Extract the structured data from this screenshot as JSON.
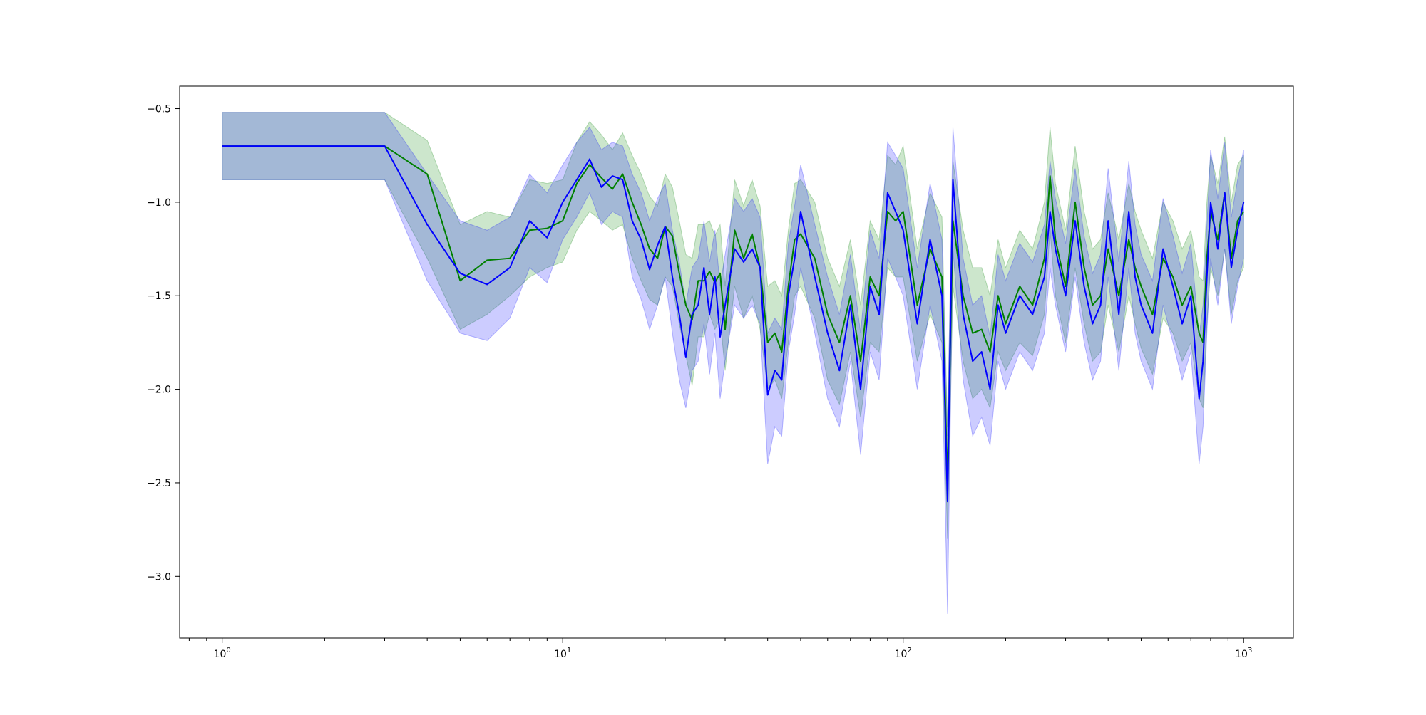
{
  "chart_data": {
    "type": "line",
    "title": "",
    "xlabel": "",
    "ylabel": "",
    "xscale": "log",
    "xlim": [
      0.75,
      1400
    ],
    "ylim": [
      -3.33,
      -0.38
    ],
    "grid": false,
    "x_ticks": [
      {
        "value": 1,
        "label": "10",
        "exp": "0"
      },
      {
        "value": 10,
        "label": "10",
        "exp": "1"
      },
      {
        "value": 100,
        "label": "10",
        "exp": "2"
      },
      {
        "value": 1000,
        "label": "10",
        "exp": "3"
      }
    ],
    "y_ticks": [
      {
        "value": -0.5,
        "label": "−0.5"
      },
      {
        "value": -1.0,
        "label": "−1.0"
      },
      {
        "value": -1.5,
        "label": "−1.5"
      },
      {
        "value": -2.0,
        "label": "−2.0"
      },
      {
        "value": -2.5,
        "label": "−2.5"
      },
      {
        "value": -3.0,
        "label": "−3.0"
      }
    ],
    "series": [
      {
        "color": "#008000",
        "band_color": "#008000",
        "x": [
          1,
          3,
          4,
          5,
          6,
          7,
          8,
          9,
          10,
          11,
          12,
          13,
          14,
          15,
          16,
          17,
          18,
          19,
          20,
          21,
          22,
          23,
          24,
          25,
          26,
          27,
          28,
          29,
          30,
          32,
          34,
          36,
          38,
          40,
          42,
          44,
          46,
          48,
          50,
          55,
          60,
          65,
          70,
          75,
          80,
          85,
          90,
          95,
          100,
          110,
          120,
          130,
          135,
          140,
          150,
          160,
          170,
          180,
          190,
          200,
          220,
          240,
          260,
          270,
          280,
          300,
          320,
          340,
          360,
          380,
          400,
          430,
          460,
          480,
          500,
          540,
          580,
          620,
          660,
          700,
          740,
          760,
          780,
          800,
          840,
          880,
          920,
          960,
          1000
        ],
        "y": [
          -0.7,
          -0.7,
          -0.85,
          -1.42,
          -1.31,
          -1.3,
          -1.15,
          -1.14,
          -1.1,
          -0.9,
          -0.8,
          -0.87,
          -0.93,
          -0.85,
          -1.0,
          -1.12,
          -1.25,
          -1.3,
          -1.13,
          -1.18,
          -1.38,
          -1.55,
          -1.63,
          -1.42,
          -1.42,
          -1.37,
          -1.43,
          -1.38,
          -1.68,
          -1.15,
          -1.3,
          -1.17,
          -1.35,
          -1.75,
          -1.7,
          -1.8,
          -1.45,
          -1.2,
          -1.17,
          -1.3,
          -1.6,
          -1.75,
          -1.5,
          -1.85,
          -1.4,
          -1.5,
          -1.05,
          -1.1,
          -1.05,
          -1.55,
          -1.25,
          -1.4,
          -2.5,
          -1.1,
          -1.5,
          -1.7,
          -1.68,
          -1.8,
          -1.5,
          -1.65,
          -1.45,
          -1.55,
          -1.3,
          -0.86,
          -1.2,
          -1.45,
          -1.0,
          -1.35,
          -1.55,
          -1.5,
          -1.25,
          -1.5,
          -1.2,
          -1.35,
          -1.45,
          -1.6,
          -1.3,
          -1.4,
          -1.55,
          -1.45,
          -1.7,
          -1.75,
          -1.3,
          -1.05,
          -1.2,
          -0.95,
          -1.3,
          -1.1,
          -1.05
        ],
        "lower": [
          -0.88,
          -0.88,
          -1.3,
          -1.68,
          -1.6,
          -1.5,
          -1.4,
          -1.35,
          -1.32,
          -1.15,
          -1.05,
          -1.1,
          -1.15,
          -1.12,
          -1.3,
          -1.42,
          -1.52,
          -1.55,
          -1.4,
          -1.45,
          -1.65,
          -1.82,
          -1.98,
          -1.72,
          -1.72,
          -1.6,
          -1.68,
          -1.62,
          -1.9,
          -1.45,
          -1.62,
          -1.5,
          -1.68,
          -2.0,
          -1.95,
          -2.05,
          -1.75,
          -1.5,
          -1.45,
          -1.62,
          -1.95,
          -2.08,
          -1.8,
          -2.15,
          -1.75,
          -1.8,
          -1.35,
          -1.4,
          -1.4,
          -1.85,
          -1.6,
          -1.75,
          -2.8,
          -1.45,
          -1.85,
          -2.05,
          -2.0,
          -2.1,
          -1.8,
          -1.9,
          -1.75,
          -1.82,
          -1.6,
          -1.15,
          -1.5,
          -1.75,
          -1.35,
          -1.65,
          -1.85,
          -1.8,
          -1.55,
          -1.8,
          -1.5,
          -1.65,
          -1.78,
          -1.92,
          -1.62,
          -1.7,
          -1.85,
          -1.75,
          -2.05,
          -2.1,
          -1.65,
          -1.35,
          -1.5,
          -1.25,
          -1.6,
          -1.42,
          -1.35
        ],
        "upper": [
          -0.52,
          -0.52,
          -0.67,
          -1.12,
          -1.05,
          -1.08,
          -0.88,
          -0.9,
          -0.88,
          -0.68,
          -0.57,
          -0.64,
          -0.72,
          -0.63,
          -0.75,
          -0.85,
          -0.97,
          -1.02,
          -0.85,
          -0.92,
          -1.1,
          -1.28,
          -1.3,
          -1.12,
          -1.12,
          -1.1,
          -1.18,
          -1.12,
          -1.45,
          -0.88,
          -1.02,
          -0.88,
          -1.02,
          -1.45,
          -1.42,
          -1.5,
          -1.15,
          -0.9,
          -0.88,
          -1.0,
          -1.3,
          -1.45,
          -1.2,
          -1.55,
          -1.1,
          -1.2,
          -0.75,
          -0.8,
          -0.7,
          -1.25,
          -0.95,
          -1.08,
          -2.2,
          -0.78,
          -1.15,
          -1.35,
          -1.35,
          -1.5,
          -1.2,
          -1.35,
          -1.15,
          -1.25,
          -1.0,
          -0.6,
          -0.9,
          -1.15,
          -0.7,
          -1.05,
          -1.25,
          -1.2,
          -0.95,
          -1.2,
          -0.9,
          -1.05,
          -1.15,
          -1.3,
          -1.0,
          -1.1,
          -1.25,
          -1.15,
          -1.4,
          -1.42,
          -1.0,
          -0.75,
          -0.9,
          -0.65,
          -1.0,
          -0.8,
          -0.75
        ]
      },
      {
        "color": "#0000ff",
        "band_color": "#0000ff",
        "x": [
          1,
          3,
          4,
          5,
          6,
          7,
          8,
          9,
          10,
          11,
          12,
          13,
          14,
          15,
          16,
          17,
          18,
          19,
          20,
          21,
          22,
          23,
          24,
          25,
          26,
          27,
          28,
          29,
          30,
          32,
          34,
          36,
          38,
          40,
          42,
          44,
          46,
          48,
          50,
          55,
          60,
          65,
          70,
          75,
          80,
          85,
          90,
          95,
          100,
          110,
          120,
          130,
          135,
          140,
          150,
          160,
          170,
          180,
          190,
          200,
          220,
          240,
          260,
          270,
          280,
          300,
          320,
          340,
          360,
          380,
          400,
          430,
          460,
          480,
          500,
          540,
          580,
          620,
          660,
          700,
          740,
          760,
          780,
          800,
          840,
          880,
          920,
          960,
          1000
        ],
        "y": [
          -0.7,
          -0.7,
          -1.12,
          -1.38,
          -1.44,
          -1.35,
          -1.1,
          -1.19,
          -1.0,
          -0.88,
          -0.77,
          -0.92,
          -0.86,
          -0.88,
          -1.1,
          -1.2,
          -1.36,
          -1.23,
          -1.13,
          -1.4,
          -1.6,
          -1.83,
          -1.6,
          -1.55,
          -1.35,
          -1.6,
          -1.4,
          -1.72,
          -1.55,
          -1.25,
          -1.32,
          -1.25,
          -1.35,
          -2.03,
          -1.9,
          -1.95,
          -1.5,
          -1.3,
          -1.05,
          -1.4,
          -1.7,
          -1.9,
          -1.55,
          -2.0,
          -1.45,
          -1.6,
          -0.95,
          -1.05,
          -1.15,
          -1.65,
          -1.2,
          -1.5,
          -2.6,
          -0.88,
          -1.6,
          -1.85,
          -1.8,
          -2.0,
          -1.55,
          -1.7,
          -1.5,
          -1.6,
          -1.4,
          -1.05,
          -1.25,
          -1.5,
          -1.1,
          -1.45,
          -1.65,
          -1.55,
          -1.1,
          -1.6,
          -1.05,
          -1.4,
          -1.55,
          -1.7,
          -1.25,
          -1.45,
          -1.65,
          -1.5,
          -2.05,
          -1.85,
          -1.4,
          -1.0,
          -1.25,
          -0.95,
          -1.35,
          -1.15,
          -1.0
        ],
        "lower": [
          -0.88,
          -0.88,
          -1.42,
          -1.7,
          -1.74,
          -1.62,
          -1.35,
          -1.43,
          -1.2,
          -1.08,
          -0.95,
          -1.12,
          -1.05,
          -1.08,
          -1.4,
          -1.52,
          -1.68,
          -1.55,
          -1.4,
          -1.7,
          -1.95,
          -2.1,
          -1.9,
          -1.85,
          -1.65,
          -1.92,
          -1.7,
          -2.05,
          -1.85,
          -1.55,
          -1.62,
          -1.55,
          -1.65,
          -2.4,
          -2.2,
          -2.25,
          -1.8,
          -1.6,
          -1.35,
          -1.7,
          -2.05,
          -2.2,
          -1.85,
          -2.35,
          -1.8,
          -1.95,
          -1.3,
          -1.4,
          -1.5,
          -2.0,
          -1.55,
          -1.85,
          -3.2,
          -1.25,
          -1.95,
          -2.25,
          -2.15,
          -2.3,
          -1.85,
          -2.0,
          -1.8,
          -1.9,
          -1.7,
          -1.35,
          -1.55,
          -1.8,
          -1.4,
          -1.75,
          -1.95,
          -1.85,
          -1.4,
          -1.9,
          -1.35,
          -1.7,
          -1.85,
          -2.0,
          -1.55,
          -1.75,
          -1.95,
          -1.8,
          -2.4,
          -2.2,
          -1.7,
          -1.3,
          -1.55,
          -1.25,
          -1.65,
          -1.45,
          -1.3
        ],
        "upper": [
          -0.52,
          -0.52,
          -0.85,
          -1.1,
          -1.15,
          -1.08,
          -0.85,
          -0.95,
          -0.8,
          -0.68,
          -0.6,
          -0.72,
          -0.68,
          -0.7,
          -0.85,
          -0.95,
          -1.1,
          -0.98,
          -0.9,
          -1.15,
          -1.32,
          -1.55,
          -1.35,
          -1.3,
          -1.1,
          -1.32,
          -1.15,
          -1.45,
          -1.28,
          -0.98,
          -1.05,
          -0.98,
          -1.08,
          -1.7,
          -1.62,
          -1.68,
          -1.22,
          -1.02,
          -0.8,
          -1.12,
          -1.4,
          -1.6,
          -1.28,
          -1.7,
          -1.15,
          -1.3,
          -0.68,
          -0.75,
          -0.82,
          -1.35,
          -0.9,
          -1.2,
          -2.25,
          -0.6,
          -1.3,
          -1.55,
          -1.5,
          -1.72,
          -1.28,
          -1.42,
          -1.22,
          -1.32,
          -1.12,
          -0.78,
          -0.98,
          -1.22,
          -0.82,
          -1.18,
          -1.38,
          -1.28,
          -0.82,
          -1.32,
          -0.78,
          -1.12,
          -1.28,
          -1.42,
          -0.98,
          -1.18,
          -1.38,
          -1.22,
          -1.72,
          -1.55,
          -1.12,
          -0.72,
          -0.98,
          -0.68,
          -1.08,
          -0.88,
          -0.72
        ]
      }
    ]
  }
}
